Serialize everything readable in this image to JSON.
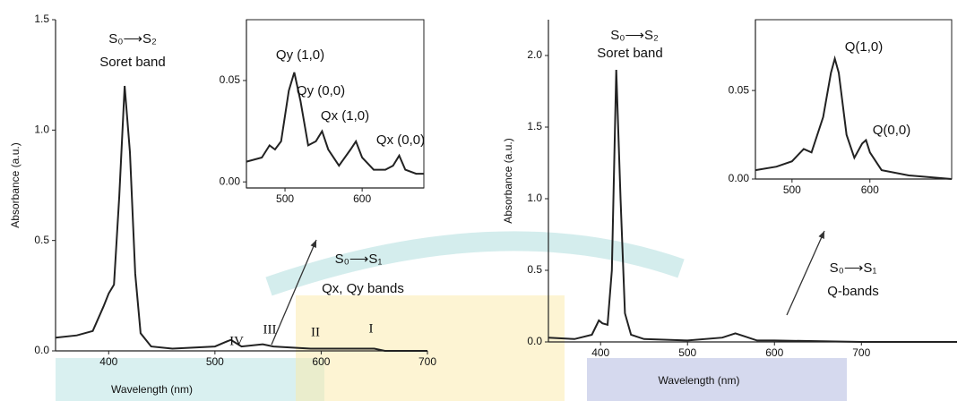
{
  "chart_data": [
    {
      "type": "line",
      "xlabel": "Wavelength (nm)",
      "ylabel": "Absorbance (a.u.)",
      "x": [
        350,
        370,
        385,
        395,
        400,
        405,
        410,
        415,
        420,
        425,
        430,
        440,
        460,
        500,
        510,
        515,
        525,
        545,
        555,
        590,
        600,
        645,
        650,
        660,
        700
      ],
      "values": [
        0.06,
        0.07,
        0.09,
        0.2,
        0.26,
        0.3,
        0.7,
        1.2,
        0.9,
        0.35,
        0.08,
        0.02,
        0.01,
        0.02,
        0.04,
        0.05,
        0.02,
        0.03,
        0.02,
        0.01,
        0.01,
        0.01,
        0.01,
        0,
        0
      ],
      "color": "#222222",
      "xlim": [
        350,
        700
      ],
      "xticks": [
        400,
        500,
        600,
        700
      ],
      "ylim": [
        0,
        1.5
      ],
      "yticks": [
        {
          "value": 0,
          "label": "0.0"
        },
        {
          "value": 0.5,
          "label": "0.5"
        },
        {
          "value": 1,
          "label": "1.0"
        },
        {
          "value": 1.5,
          "label": "1.5"
        }
      ],
      "annotations": [
        "S₀⟶S₂",
        "Soret band",
        "IV",
        "III",
        "II",
        "I",
        "S₀⟶S₁",
        "Qx, Qy bands"
      ]
    },
    {
      "type": "line",
      "x": [
        450,
        470,
        480,
        487,
        495,
        505,
        512,
        520,
        530,
        540,
        548,
        556,
        570,
        585,
        592,
        600,
        615,
        630,
        640,
        648,
        656,
        670,
        680
      ],
      "values": [
        0.01,
        0.012,
        0.018,
        0.016,
        0.02,
        0.045,
        0.054,
        0.04,
        0.018,
        0.02,
        0.025,
        0.016,
        0.008,
        0.016,
        0.02,
        0.012,
        0.006,
        0.006,
        0.008,
        0.013,
        0.006,
        0.004,
        0.004
      ],
      "color": "#222222",
      "xlim": [
        450,
        680
      ],
      "xticks": [
        500,
        600
      ],
      "ylim": [
        -0.003,
        0.08
      ],
      "yticks": [
        {
          "value": 0,
          "label": "0.00"
        },
        {
          "value": 0.05,
          "label": "0.05"
        }
      ],
      "annotations": [
        "Qy (1,0)",
        "Qy (0,0)",
        "Qx (1,0)",
        "Qx (0,0)"
      ]
    },
    {
      "type": "line",
      "xlabel": "Wavelength (nm)",
      "ylabel": "Absorbance (a.u.)",
      "x": [
        340,
        370,
        390,
        398,
        402,
        408,
        413,
        418,
        423,
        428,
        435,
        450,
        500,
        540,
        555,
        565,
        580,
        600,
        700,
        810
      ],
      "values": [
        0.03,
        0.02,
        0.05,
        0.15,
        0.13,
        0.12,
        0.5,
        1.9,
        1.0,
        0.2,
        0.05,
        0.02,
        0.01,
        0.03,
        0.06,
        0.04,
        0.01,
        0.01,
        0,
        0
      ],
      "color": "#222222",
      "xlim": [
        340,
        810
      ],
      "xticks": [
        400,
        500,
        600,
        700
      ],
      "ylim": [
        0,
        2.25
      ],
      "yticks": [
        {
          "value": 0,
          "label": "0.0"
        },
        {
          "value": 0.5,
          "label": "0.5"
        },
        {
          "value": 1,
          "label": "1.0"
        },
        {
          "value": 1.5,
          "label": "1.5"
        },
        {
          "value": 2,
          "label": "2.0"
        }
      ],
      "annotations": [
        "S₀⟶S₂",
        "Soret band",
        "S₀⟶S₁",
        "Q-bands"
      ]
    },
    {
      "type": "line",
      "x": [
        453,
        480,
        500,
        515,
        525,
        540,
        550,
        555,
        560,
        570,
        580,
        590,
        595,
        600,
        615,
        650,
        705
      ],
      "values": [
        0.005,
        0.007,
        0.01,
        0.017,
        0.015,
        0.035,
        0.06,
        0.068,
        0.06,
        0.025,
        0.012,
        0.02,
        0.022,
        0.015,
        0.005,
        0.002,
        0
      ],
      "color": "#222222",
      "xlim": [
        453,
        705
      ],
      "xticks": [
        500,
        600
      ],
      "ylim": [
        0,
        0.09
      ],
      "yticks": [
        {
          "value": 0,
          "label": "0.00"
        },
        {
          "value": 0.05,
          "label": "0.05"
        }
      ],
      "annotations": [
        "Q(1,0)",
        "Q(0,0)"
      ]
    }
  ]
}
